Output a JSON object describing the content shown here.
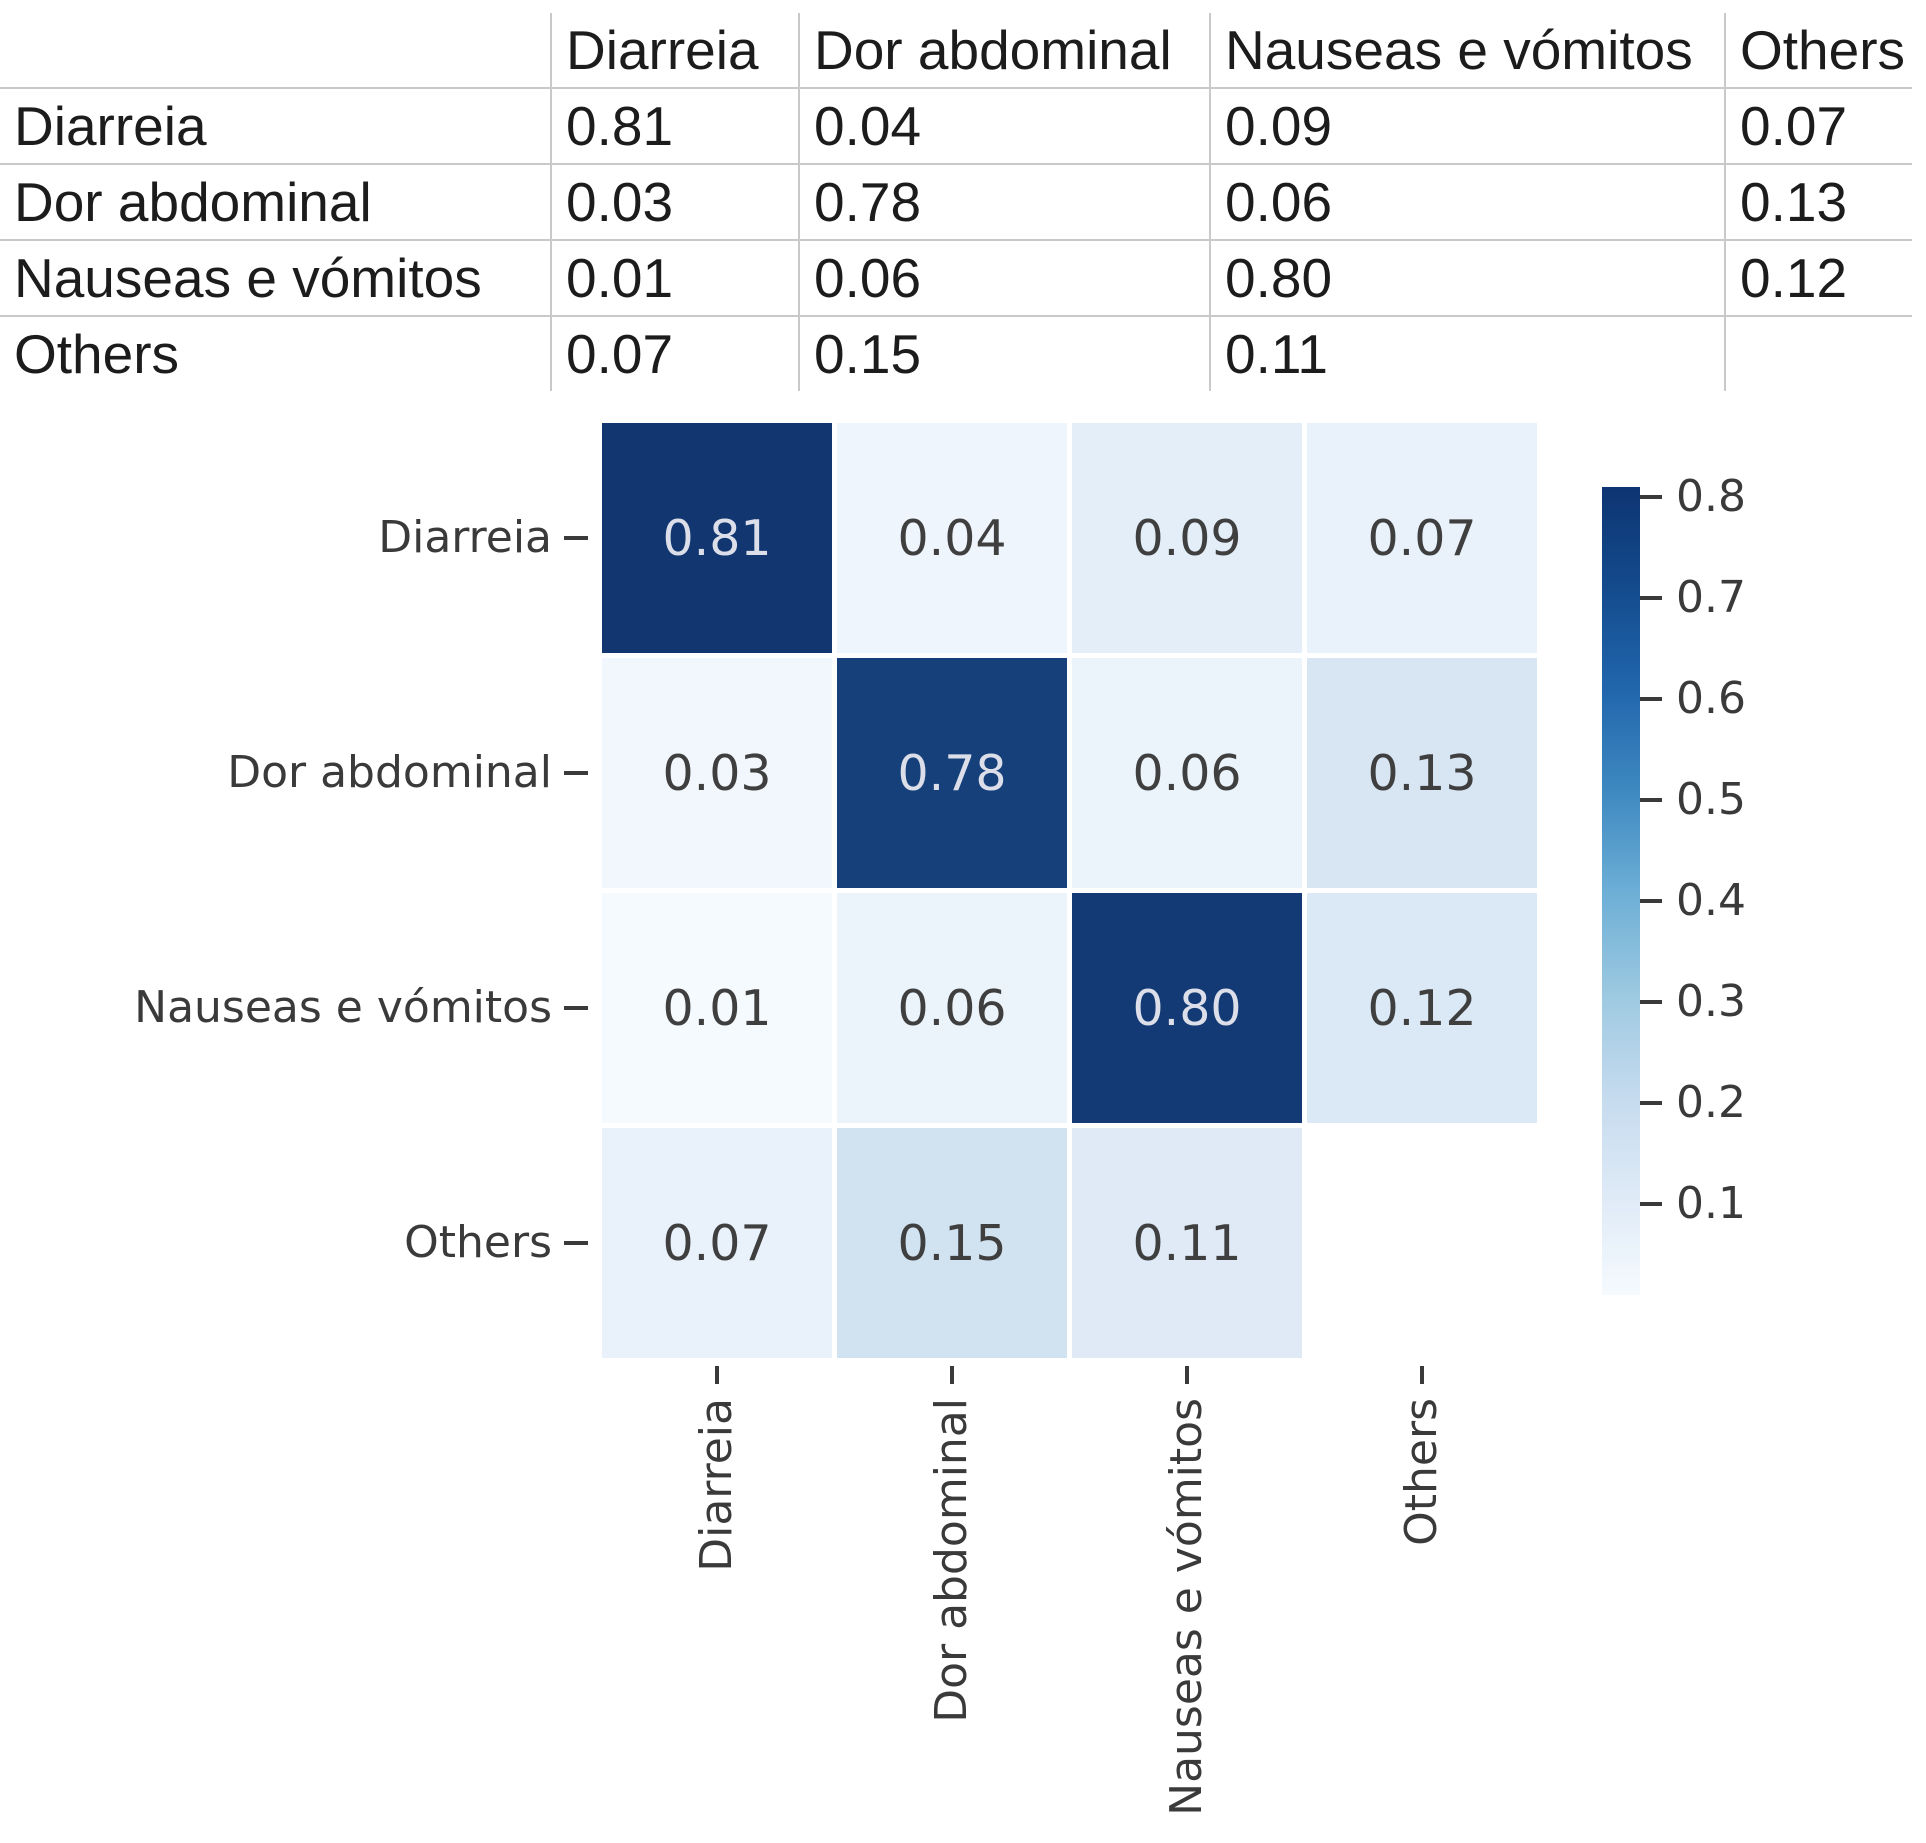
{
  "table": {
    "columns": [
      "",
      "Diarreia",
      "Dor abdominal",
      "Nauseas e vómitos",
      "Others"
    ],
    "rows": [
      {
        "label": "Diarreia",
        "values": [
          "0.81",
          "0.04",
          "0.09",
          "0.07"
        ]
      },
      {
        "label": "Dor abdominal",
        "values": [
          "0.03",
          "0.78",
          "0.06",
          "0.13"
        ]
      },
      {
        "label": "Nauseas e vómitos",
        "values": [
          "0.01",
          "0.06",
          "0.80",
          "0.12"
        ]
      },
      {
        "label": "Others",
        "values": [
          "0.07",
          "0.15",
          "0.11",
          ""
        ]
      }
    ]
  },
  "chart_data": {
    "type": "heatmap",
    "x_categories": [
      "Diarreia",
      "Dor abdominal",
      "Nauseas e vómitos",
      "Others"
    ],
    "y_categories": [
      "Diarreia",
      "Dor abdominal",
      "Nauseas e vómitos",
      "Others"
    ],
    "matrix": [
      [
        0.81,
        0.04,
        0.09,
        0.07
      ],
      [
        0.03,
        0.78,
        0.06,
        0.13
      ],
      [
        0.01,
        0.06,
        0.8,
        0.12
      ],
      [
        0.07,
        0.15,
        0.11,
        null
      ]
    ],
    "annotations": [
      [
        "0.81",
        "0.04",
        "0.09",
        "0.07"
      ],
      [
        "0.03",
        "0.78",
        "0.06",
        "0.13"
      ],
      [
        "0.01",
        "0.06",
        "0.80",
        "0.12"
      ],
      [
        "0.07",
        "0.15",
        "0.11",
        ""
      ]
    ],
    "colormap": "Blues",
    "vmin": 0.01,
    "vmax": 0.81,
    "colorbar_ticks": [
      "0.8",
      "0.7",
      "0.6",
      "0.5",
      "0.4",
      "0.3",
      "0.2",
      "0.1"
    ],
    "legend_position": "right",
    "grid": false,
    "title": "",
    "xlabel": "",
    "ylabel": ""
  },
  "colors": {
    "cell_colors": [
      [
        "#12366f",
        "#eff5fc",
        "#e3eef8",
        "#e9f2fa"
      ],
      [
        "#f2f7fd",
        "#15407a",
        "#ecf4fb",
        "#d8e6f4"
      ],
      [
        "#f5fafe",
        "#ecf4fb",
        "#133a74",
        "#dbe8f5"
      ],
      [
        "#e9f2fa",
        "#d1e2f1",
        "#dfeaf6",
        "#ffffff"
      ]
    ],
    "annotation_dark_cell_text": "#dcdfe9",
    "annotation_light_cell_text": "#3f3f3f",
    "tick_label_text": "#3a3a3a",
    "table_text": "#1c1c1c",
    "table_border": "#c9c9c9",
    "colorbar_top": "#0d3472",
    "colorbar_bottom": "#f5fafe"
  }
}
